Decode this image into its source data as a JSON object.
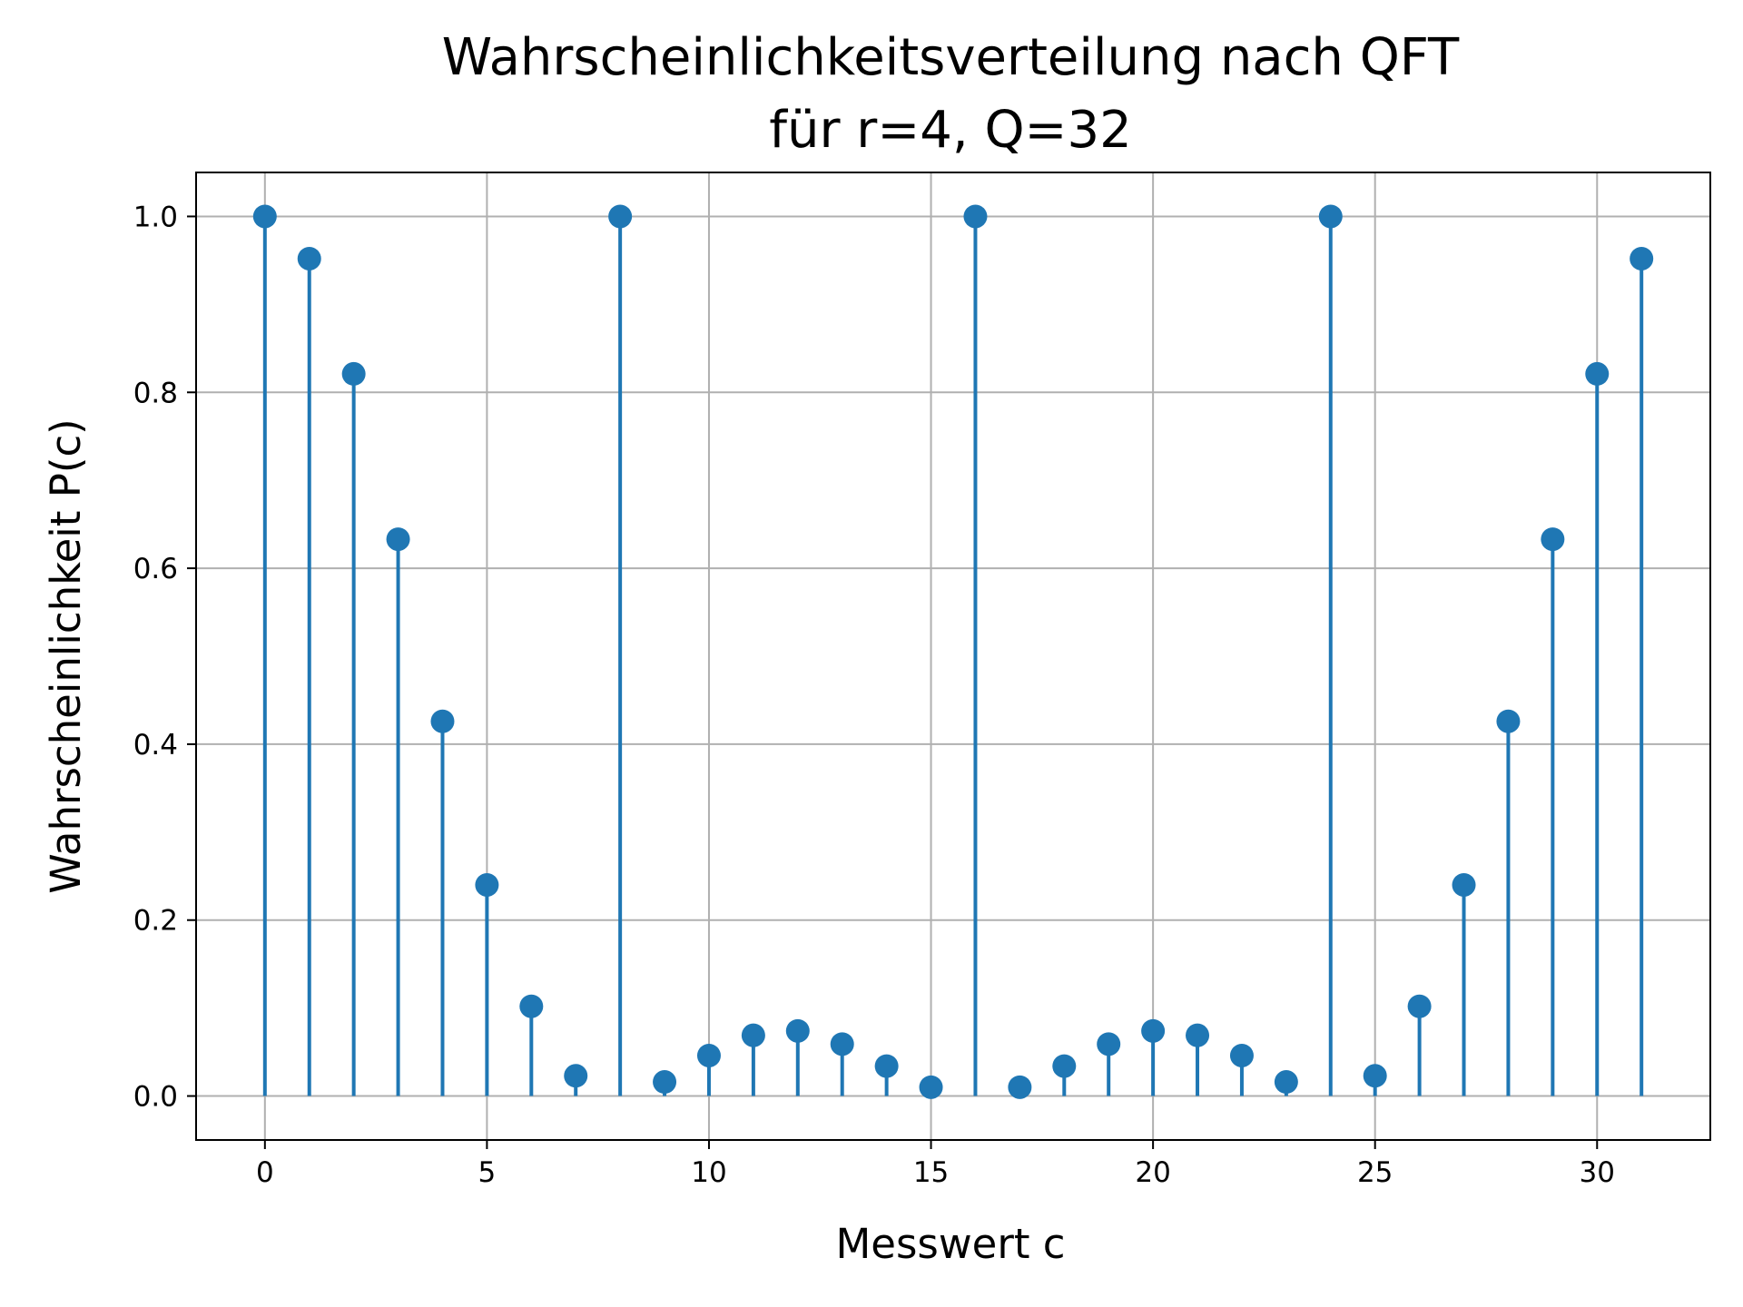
{
  "chart_data": {
    "type": "stem",
    "title": "Wahrscheinlichkeitsverteilung nach QFT",
    "subtitle": "für r=4, Q=32",
    "xlabel": "Messwert c",
    "ylabel": "Wahrscheinlichkeit P(c)",
    "xlim": [
      -1.55,
      32.55
    ],
    "ylim": [
      -0.05,
      1.05
    ],
    "x_ticks": [
      0,
      5,
      10,
      15,
      20,
      25,
      30
    ],
    "x_tick_labels": [
      "0",
      "5",
      "10",
      "15",
      "20",
      "25",
      "30"
    ],
    "y_ticks": [
      0.0,
      0.2,
      0.4,
      0.6,
      0.8,
      1.0
    ],
    "y_tick_labels": [
      "0.0",
      "0.2",
      "0.4",
      "0.6",
      "0.8",
      "1.0"
    ],
    "grid": true,
    "color": "#1f77b4",
    "x": [
      0,
      1,
      2,
      3,
      4,
      5,
      6,
      7,
      8,
      9,
      10,
      11,
      12,
      13,
      14,
      15,
      16,
      17,
      18,
      19,
      20,
      21,
      22,
      23,
      24,
      25,
      26,
      27,
      28,
      29,
      30,
      31
    ],
    "values": [
      1.0,
      0.952,
      0.821,
      0.633,
      0.426,
      0.24,
      0.102,
      0.023,
      1.0,
      0.016,
      0.046,
      0.069,
      0.074,
      0.059,
      0.034,
      0.01,
      1.0,
      0.01,
      0.034,
      0.059,
      0.074,
      0.069,
      0.046,
      0.016,
      1.0,
      0.023,
      0.102,
      0.24,
      0.426,
      0.633,
      0.821,
      0.952
    ]
  }
}
